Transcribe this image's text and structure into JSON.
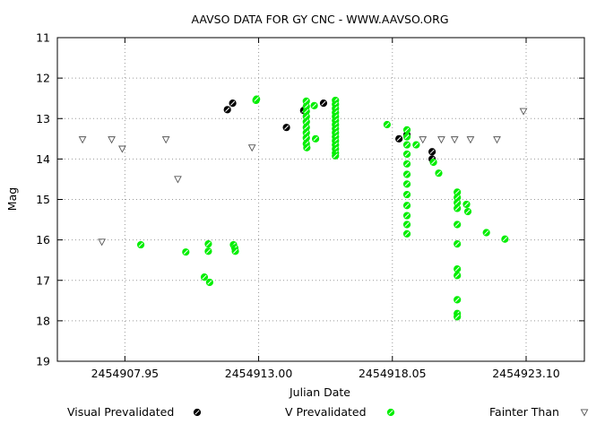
{
  "chart_data": {
    "type": "scatter",
    "title": "AAVSO DATA FOR GY CNC - WWW.AAVSO.ORG",
    "xlabel": "Julian Date",
    "ylabel": "Mag",
    "xlim": [
      2454905.4,
      2454925.3
    ],
    "ylim": [
      11,
      19
    ],
    "y_inverted": true,
    "grid": true,
    "legend_position": "bottom",
    "xticks": [
      {
        "value": 2454907.95,
        "label": "2454907.95"
      },
      {
        "value": 2454913.0,
        "label": "2454913.00"
      },
      {
        "value": 2454918.05,
        "label": "2454918.05"
      },
      {
        "value": 2454923.1,
        "label": "2454923.10"
      }
    ],
    "yticks": [
      11,
      12,
      13,
      14,
      15,
      16,
      17,
      18,
      19
    ],
    "series": [
      {
        "name": "Visual Prevalidated",
        "marker": "circle-hatched",
        "color": "#000000",
        "points": [
          [
            2454911.82,
            12.78
          ],
          [
            2454912.02,
            12.62
          ],
          [
            2454914.05,
            13.22
          ],
          [
            2454914.7,
            12.8
          ],
          [
            2454915.45,
            12.62
          ],
          [
            2454918.3,
            13.5
          ],
          [
            2454918.6,
            13.4
          ],
          [
            2454919.55,
            13.82
          ],
          [
            2454919.55,
            14.0
          ]
        ]
      },
      {
        "name": "V Prevalidated",
        "marker": "circle-hatched",
        "color": "#00ee00",
        "points": [
          [
            2454908.55,
            16.12
          ],
          [
            2454910.25,
            16.3
          ],
          [
            2454910.95,
            16.92
          ],
          [
            2454911.1,
            16.1
          ],
          [
            2454911.1,
            16.28
          ],
          [
            2454911.15,
            17.05
          ],
          [
            2454912.05,
            16.12
          ],
          [
            2454912.1,
            16.2
          ],
          [
            2454912.12,
            16.28
          ],
          [
            2454912.9,
            12.55
          ],
          [
            2454912.92,
            12.52
          ],
          [
            2454914.8,
            12.57
          ],
          [
            2454914.8,
            12.7
          ],
          [
            2454914.8,
            12.82
          ],
          [
            2454914.8,
            12.95
          ],
          [
            2454914.8,
            13.08
          ],
          [
            2454914.8,
            13.22
          ],
          [
            2454914.8,
            13.35
          ],
          [
            2454914.8,
            13.48
          ],
          [
            2454914.8,
            13.62
          ],
          [
            2454914.82,
            13.72
          ],
          [
            2454915.1,
            12.68
          ],
          [
            2454915.15,
            13.5
          ],
          [
            2454915.9,
            12.55
          ],
          [
            2454915.9,
            12.65
          ],
          [
            2454915.9,
            12.75
          ],
          [
            2454915.9,
            12.85
          ],
          [
            2454915.9,
            12.95
          ],
          [
            2454915.9,
            13.05
          ],
          [
            2454915.9,
            13.15
          ],
          [
            2454915.9,
            13.25
          ],
          [
            2454915.9,
            13.35
          ],
          [
            2454915.9,
            13.45
          ],
          [
            2454915.9,
            13.55
          ],
          [
            2454915.9,
            13.65
          ],
          [
            2454915.9,
            13.75
          ],
          [
            2454915.9,
            13.85
          ],
          [
            2454915.9,
            13.92
          ],
          [
            2454917.85,
            13.15
          ],
          [
            2454918.6,
            13.28
          ],
          [
            2454918.6,
            13.45
          ],
          [
            2454918.6,
            13.65
          ],
          [
            2454918.6,
            13.88
          ],
          [
            2454918.6,
            14.12
          ],
          [
            2454918.6,
            14.38
          ],
          [
            2454918.6,
            14.62
          ],
          [
            2454918.6,
            14.88
          ],
          [
            2454918.6,
            15.15
          ],
          [
            2454918.6,
            15.4
          ],
          [
            2454918.6,
            15.62
          ],
          [
            2454918.6,
            15.85
          ],
          [
            2454918.95,
            13.65
          ],
          [
            2454919.6,
            14.08
          ],
          [
            2454919.8,
            14.35
          ],
          [
            2454920.5,
            14.82
          ],
          [
            2454920.5,
            14.95
          ],
          [
            2454920.5,
            15.08
          ],
          [
            2454920.5,
            15.22
          ],
          [
            2454920.5,
            15.62
          ],
          [
            2454920.5,
            16.1
          ],
          [
            2454920.5,
            16.72
          ],
          [
            2454920.5,
            16.88
          ],
          [
            2454920.5,
            17.48
          ],
          [
            2454920.5,
            17.82
          ],
          [
            2454920.5,
            17.9
          ],
          [
            2454920.85,
            15.12
          ],
          [
            2454920.9,
            15.3
          ],
          [
            2454921.6,
            15.82
          ],
          [
            2454922.3,
            15.98
          ]
        ]
      },
      {
        "name": "Fainter Than",
        "marker": "triangle-down-open",
        "color": "#555555",
        "points": [
          [
            2454906.35,
            13.52
          ],
          [
            2454907.45,
            13.52
          ],
          [
            2454907.85,
            13.75
          ],
          [
            2454907.08,
            16.05
          ],
          [
            2454909.5,
            13.52
          ],
          [
            2454909.95,
            14.5
          ],
          [
            2454912.75,
            13.72
          ],
          [
            2454919.2,
            13.52
          ],
          [
            2454919.9,
            13.52
          ],
          [
            2454920.4,
            13.52
          ],
          [
            2454921.0,
            13.52
          ],
          [
            2454922.0,
            13.52
          ],
          [
            2454923.0,
            12.82
          ]
        ]
      }
    ]
  }
}
